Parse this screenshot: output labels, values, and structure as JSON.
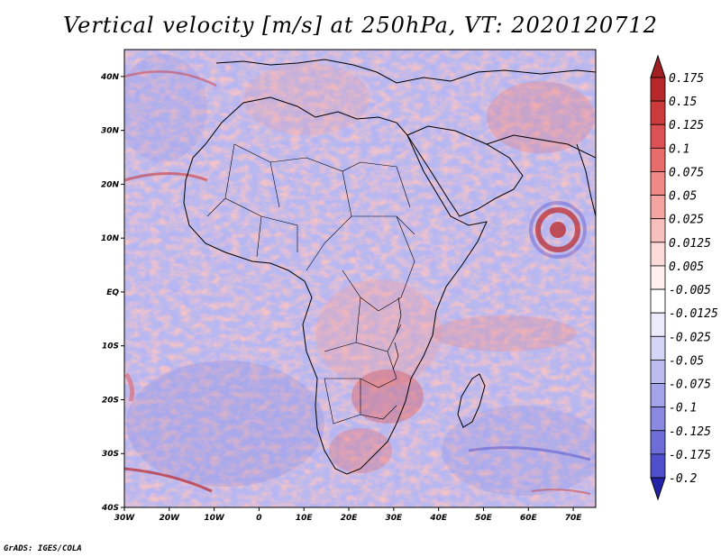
{
  "title": "Vertical velocity [m/s] at 250hPa, VT: 2020120712",
  "footer": "GrADS: IGES/COLA",
  "map": {
    "lon_range": [
      -30,
      75
    ],
    "lat_range": [
      -40,
      45
    ],
    "lat_ticks": [
      {
        "value": 40,
        "label": "40N"
      },
      {
        "value": 30,
        "label": "30N"
      },
      {
        "value": 20,
        "label": "20N"
      },
      {
        "value": 10,
        "label": "10N"
      },
      {
        "value": 0,
        "label": "EQ"
      },
      {
        "value": -10,
        "label": "10S"
      },
      {
        "value": -20,
        "label": "20S"
      },
      {
        "value": -30,
        "label": "30S"
      },
      {
        "value": -40,
        "label": "40S"
      }
    ],
    "lon_ticks": [
      {
        "value": -30,
        "label": "30W"
      },
      {
        "value": -20,
        "label": "20W"
      },
      {
        "value": -10,
        "label": "10W"
      },
      {
        "value": 0,
        "label": "0"
      },
      {
        "value": 10,
        "label": "10E"
      },
      {
        "value": 20,
        "label": "20E"
      },
      {
        "value": 30,
        "label": "30E"
      },
      {
        "value": 40,
        "label": "40E"
      },
      {
        "value": 50,
        "label": "50E"
      },
      {
        "value": 60,
        "label": "60E"
      },
      {
        "value": 70,
        "label": "70E"
      }
    ]
  },
  "colorbar": {
    "entries": [
      {
        "label": "0.175",
        "color": "#b8272a"
      },
      {
        "label": "0.15",
        "color": "#cc3a3c"
      },
      {
        "label": "0.125",
        "color": "#dc5254"
      },
      {
        "label": "0.1",
        "color": "#e86c6c"
      },
      {
        "label": "0.075",
        "color": "#ef8987"
      },
      {
        "label": "0.05",
        "color": "#f4a4a1"
      },
      {
        "label": "0.025",
        "color": "#f8c0bd"
      },
      {
        "label": "0.0125",
        "color": "#fbdad8"
      },
      {
        "label": "0.005",
        "color": "#fdf0ef"
      },
      {
        "label": "-0.005",
        "color": "#ffffff"
      },
      {
        "label": "-0.0125",
        "color": "#ebebfb"
      },
      {
        "label": "-0.025",
        "color": "#d4d4f6"
      },
      {
        "label": "-0.05",
        "color": "#bcbcf0"
      },
      {
        "label": "-0.075",
        "color": "#a3a3ea"
      },
      {
        "label": "-0.1",
        "color": "#8989e2"
      },
      {
        "label": "-0.125",
        "color": "#6e6ed8"
      },
      {
        "label": "-0.175",
        "color": "#5050cc"
      },
      {
        "label": "-0.2",
        "color": "#3434ba"
      }
    ],
    "top_arrow_color": "#a31e22",
    "bottom_arrow_color": "#2222a8"
  }
}
